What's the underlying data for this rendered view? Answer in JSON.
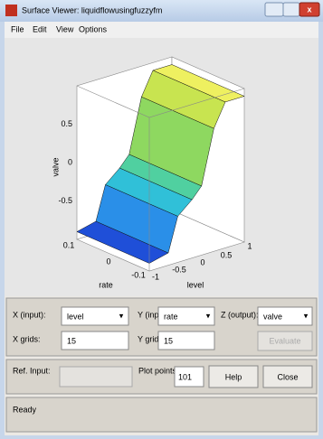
{
  "window": {
    "title": "Surface Viewer: liquidflowusingfuzzyfm"
  },
  "menu": [
    "File",
    "Edit",
    "View",
    "Options"
  ],
  "plot": {
    "z_label": "valve",
    "x_label": "rate",
    "y_label": "level",
    "z_ticks": [
      "0.5",
      "0",
      "-0.5"
    ],
    "rate_ticks": [
      "0.1",
      "0",
      "-0.1"
    ],
    "level_ticks": [
      "-1",
      "-0.5",
      "0",
      "0.5",
      "1"
    ]
  },
  "controls": {
    "x_input_label": "X (input):",
    "x_input_value": "level",
    "y_input_label": "Y (input):",
    "y_input_value": "rate",
    "z_output_label": "Z (output):",
    "z_output_value": "valve",
    "x_grids_label": "X grids:",
    "x_grids_value": "15",
    "y_grids_label": "Y grids:",
    "y_grids_value": "15",
    "evaluate": "Evaluate",
    "ref_input_label": "Ref. Input:",
    "plot_points_label": "Plot points:",
    "plot_points_value": "101",
    "help": "Help",
    "close": "Close"
  },
  "status": "Ready"
}
